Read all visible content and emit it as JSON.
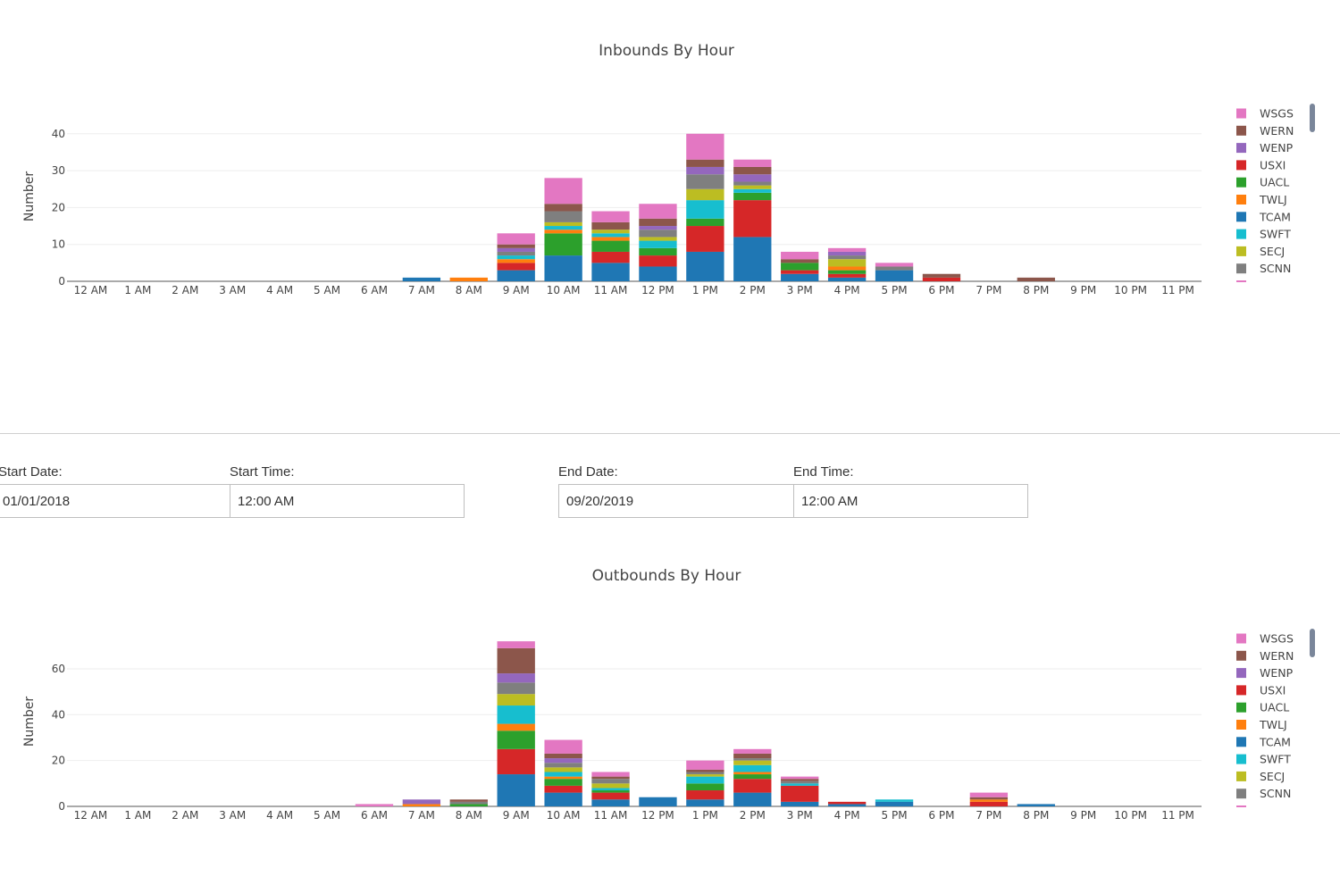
{
  "colors": {
    "WSGS": "#e377c2",
    "WERN": "#8c564b",
    "WENP": "#9467bd",
    "USXI": "#d62728",
    "UACL": "#2ca02c",
    "TWLJ": "#ff7f0e",
    "TCAM": "#1f77b4",
    "SWFT": "#17becf",
    "SECJ": "#bcbd22",
    "SCNN": "#7f7f7f"
  },
  "legend_items": [
    "WSGS",
    "WERN",
    "WENP",
    "USXI",
    "UACL",
    "TWLJ",
    "TCAM",
    "SWFT",
    "SECJ",
    "SCNN"
  ],
  "form": {
    "start_date_label": "Start Date:",
    "start_date_value": "01/01/2018",
    "start_time_label": "Start Time:",
    "start_time_value": "12:00 AM",
    "end_date_label": "End Date:",
    "end_date_value": "09/20/2019",
    "end_time_label": "End Time:",
    "end_time_value": "12:00 AM"
  },
  "chart_data": [
    {
      "type": "bar",
      "stacked": true,
      "title": "Inbounds By Hour",
      "ylabel": "Number",
      "ylim": [
        0,
        46
      ],
      "yticks": [
        0,
        10,
        20,
        30,
        40
      ],
      "legend_position": "right",
      "categories": [
        "12 AM",
        "1 AM",
        "2 AM",
        "3 AM",
        "4 AM",
        "5 AM",
        "6 AM",
        "7 AM",
        "8 AM",
        "9 AM",
        "10 AM",
        "11 AM",
        "12 PM",
        "1 PM",
        "2 PM",
        "3 PM",
        "4 PM",
        "5 PM",
        "6 PM",
        "7 PM",
        "8 PM",
        "9 PM",
        "10 PM",
        "11 PM"
      ],
      "series": [
        {
          "name": "TCAM",
          "values": [
            0,
            0,
            0,
            0,
            0,
            0,
            0,
            1,
            0,
            3,
            7,
            5,
            4,
            8,
            12,
            2,
            1,
            3,
            0,
            0,
            0,
            0,
            0,
            0
          ]
        },
        {
          "name": "USXI",
          "values": [
            0,
            0,
            0,
            0,
            0,
            0,
            0,
            0,
            0,
            2,
            0,
            3,
            3,
            7,
            10,
            1,
            1,
            0,
            1,
            0,
            0,
            0,
            0,
            0
          ]
        },
        {
          "name": "UACL",
          "values": [
            0,
            0,
            0,
            0,
            0,
            0,
            0,
            0,
            0,
            0,
            6,
            3,
            2,
            2,
            2,
            2,
            1,
            0,
            0,
            0,
            0,
            0,
            0,
            0
          ]
        },
        {
          "name": "TWLJ",
          "values": [
            0,
            0,
            0,
            0,
            0,
            0,
            0,
            0,
            1,
            1,
            1,
            1,
            0,
            0,
            0,
            0,
            1,
            0,
            0,
            0,
            0,
            0,
            0,
            0
          ]
        },
        {
          "name": "SWFT",
          "values": [
            0,
            0,
            0,
            0,
            0,
            0,
            0,
            0,
            0,
            1,
            1,
            1,
            2,
            5,
            1,
            0,
            0,
            0,
            0,
            0,
            0,
            0,
            0,
            0
          ]
        },
        {
          "name": "SECJ",
          "values": [
            0,
            0,
            0,
            0,
            0,
            0,
            0,
            0,
            0,
            0,
            1,
            1,
            1,
            3,
            1,
            0,
            2,
            0,
            0,
            0,
            0,
            0,
            0,
            0
          ]
        },
        {
          "name": "SCNN",
          "values": [
            0,
            0,
            0,
            0,
            0,
            0,
            0,
            0,
            0,
            1,
            3,
            0,
            2,
            4,
            1,
            0,
            1,
            1,
            0,
            0,
            0,
            0,
            0,
            0
          ]
        },
        {
          "name": "WENP",
          "values": [
            0,
            0,
            0,
            0,
            0,
            0,
            0,
            0,
            0,
            1,
            0,
            0,
            1,
            2,
            2,
            0,
            1,
            0,
            0,
            0,
            0,
            0,
            0,
            0
          ]
        },
        {
          "name": "WERN",
          "values": [
            0,
            0,
            0,
            0,
            0,
            0,
            0,
            0,
            0,
            1,
            2,
            2,
            2,
            2,
            2,
            1,
            0,
            0,
            1,
            0,
            1,
            0,
            0,
            0
          ]
        },
        {
          "name": "WSGS",
          "values": [
            0,
            0,
            0,
            0,
            0,
            0,
            0,
            0,
            0,
            3,
            7,
            3,
            4,
            7,
            2,
            2,
            1,
            1,
            0,
            0,
            0,
            0,
            0,
            0
          ]
        }
      ]
    },
    {
      "type": "bar",
      "stacked": true,
      "title": "Outbounds By Hour",
      "ylabel": "Number",
      "ylim": [
        0,
        74
      ],
      "yticks": [
        0,
        20,
        40,
        60
      ],
      "legend_position": "right",
      "categories": [
        "12 AM",
        "1 AM",
        "2 AM",
        "3 AM",
        "4 AM",
        "5 AM",
        "6 AM",
        "7 AM",
        "8 AM",
        "9 AM",
        "10 AM",
        "11 AM",
        "12 PM",
        "1 PM",
        "2 PM",
        "3 PM",
        "4 PM",
        "5 PM",
        "6 PM",
        "7 PM",
        "8 PM",
        "9 PM",
        "10 PM",
        "11 PM"
      ],
      "series": [
        {
          "name": "TCAM",
          "values": [
            0,
            0,
            0,
            0,
            0,
            0,
            0,
            0,
            0,
            14,
            6,
            3,
            4,
            3,
            6,
            2,
            1,
            2,
            0,
            0,
            1,
            0,
            0,
            0
          ]
        },
        {
          "name": "USXI",
          "values": [
            0,
            0,
            0,
            0,
            0,
            0,
            0,
            0,
            0,
            11,
            3,
            3,
            0,
            4,
            6,
            7,
            1,
            0,
            0,
            2,
            0,
            0,
            0,
            0
          ]
        },
        {
          "name": "UACL",
          "values": [
            0,
            0,
            0,
            0,
            0,
            0,
            0,
            0,
            1,
            8,
            3,
            1,
            0,
            3,
            2,
            0,
            0,
            0,
            0,
            0,
            0,
            0,
            0,
            0
          ]
        },
        {
          "name": "TWLJ",
          "values": [
            0,
            0,
            0,
            0,
            0,
            0,
            0,
            1,
            0,
            3,
            1,
            0,
            0,
            0,
            1,
            0,
            0,
            0,
            0,
            1,
            0,
            0,
            0,
            0
          ]
        },
        {
          "name": "SWFT",
          "values": [
            0,
            0,
            0,
            0,
            0,
            0,
            0,
            0,
            0,
            8,
            2,
            1,
            0,
            3,
            3,
            1,
            0,
            1,
            0,
            0,
            0,
            0,
            0,
            0
          ]
        },
        {
          "name": "SECJ",
          "values": [
            0,
            0,
            0,
            0,
            0,
            0,
            0,
            0,
            0,
            5,
            2,
            2,
            0,
            1,
            2,
            0,
            0,
            0,
            0,
            0,
            0,
            0,
            0,
            0
          ]
        },
        {
          "name": "SCNN",
          "values": [
            0,
            0,
            0,
            0,
            0,
            0,
            0,
            0,
            1,
            5,
            2,
            2,
            0,
            1,
            1,
            1,
            0,
            0,
            0,
            0,
            0,
            0,
            0,
            0
          ]
        },
        {
          "name": "WENP",
          "values": [
            0,
            0,
            0,
            0,
            0,
            0,
            0,
            2,
            0,
            4,
            2,
            0,
            0,
            0,
            0,
            0,
            0,
            0,
            0,
            0,
            0,
            0,
            0,
            0
          ]
        },
        {
          "name": "WERN",
          "values": [
            0,
            0,
            0,
            0,
            0,
            0,
            0,
            0,
            1,
            11,
            2,
            1,
            0,
            1,
            2,
            1,
            0,
            0,
            0,
            1,
            0,
            0,
            0,
            0
          ]
        },
        {
          "name": "WSGS",
          "values": [
            0,
            0,
            0,
            0,
            0,
            0,
            1,
            0,
            0,
            3,
            6,
            2,
            0,
            4,
            2,
            1,
            0,
            0,
            0,
            2,
            0,
            0,
            0,
            0
          ]
        }
      ]
    }
  ]
}
